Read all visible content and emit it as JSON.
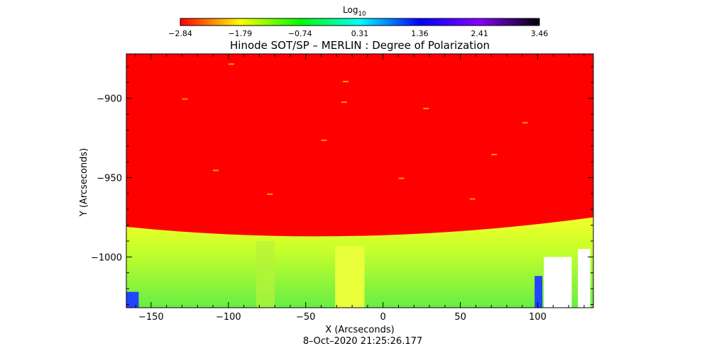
{
  "colorbar": {
    "label": "Log",
    "label_subscript": "10",
    "ticks": [
      "-2.84",
      "-1.79",
      "-0.74",
      "0.31",
      "1.36",
      "2.41",
      "3.46"
    ],
    "range": [
      -2.84,
      3.46
    ],
    "colormap": [
      "#ff0000",
      "#ffff00",
      "#00ff00",
      "#00ffff",
      "#0000ff",
      "#8800ff",
      "#000000"
    ]
  },
  "chart_data": {
    "type": "heatmap",
    "title": "Hinode SOT/SP – MERLIN : Degree of Polarization",
    "xlabel": "X (Arcseconds)",
    "ylabel": "Y (Arcseconds)",
    "xlim": [
      -166,
      136
    ],
    "ylim": [
      -1032,
      -872
    ],
    "x_ticks": [
      -150,
      -100,
      -50,
      0,
      50,
      100
    ],
    "y_ticks": [
      -900,
      -950,
      -1000
    ],
    "x_tick_labels": [
      "−150",
      "−100",
      "−50",
      "0",
      "50",
      "100"
    ],
    "y_tick_labels": [
      "−900",
      "−950",
      "−1000"
    ],
    "limb_y_left": -981,
    "limb_y_center": -992,
    "limb_y_right": -975,
    "above_limb_value": -2.84,
    "below_limb_value": -0.74,
    "timestamp": "8–Oct–2020 21:25:26.177"
  }
}
